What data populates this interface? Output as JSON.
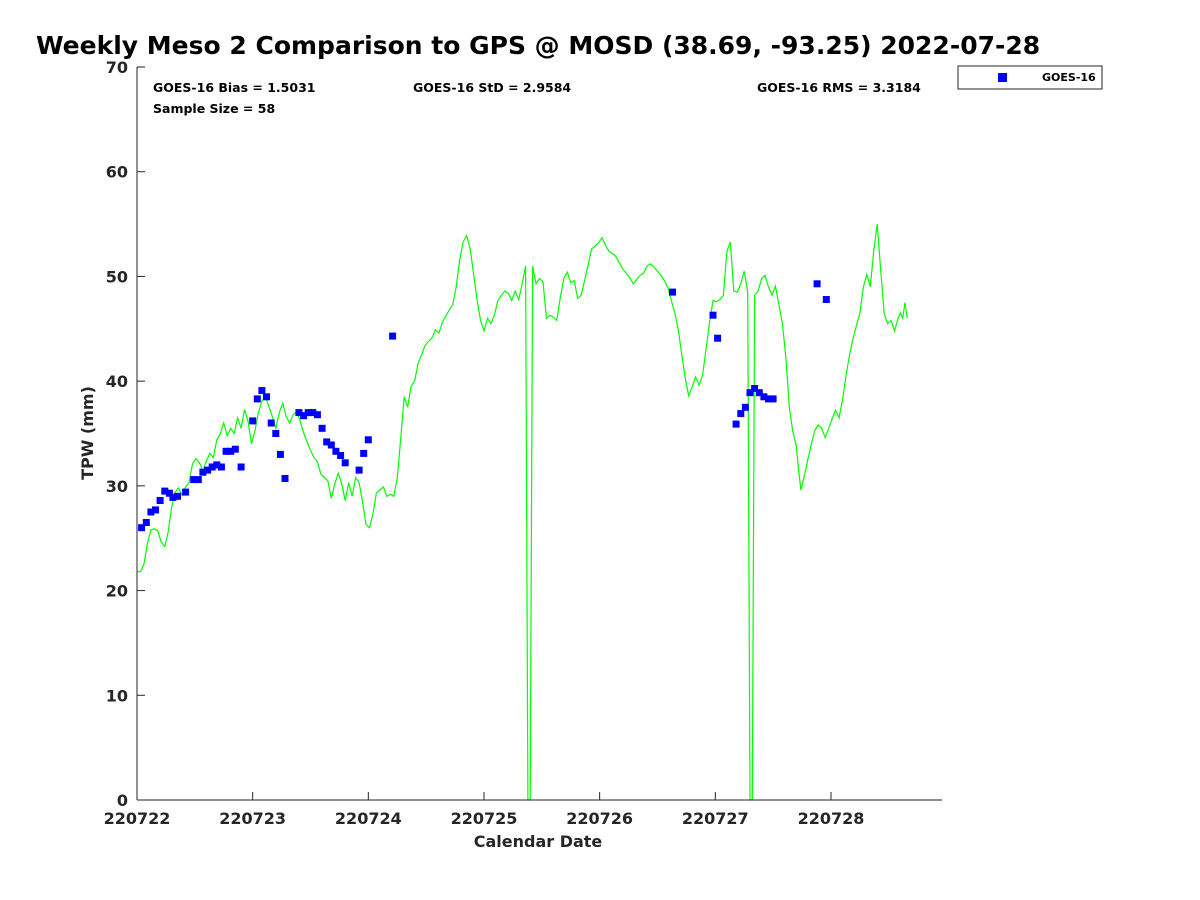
{
  "chart_data": {
    "type": "scatter",
    "title": "Weekly Meso 2 Comparison to GPS @ MOSD (38.69, -93.25) 2022-07-28",
    "xlabel": "Calendar Date",
    "ylabel": "TPW (mm)",
    "xlim": [
      0,
      6.96
    ],
    "ylim": [
      0,
      70
    ],
    "yticks": [
      0,
      10,
      20,
      30,
      40,
      50,
      60,
      70
    ],
    "xticks": [
      0,
      1,
      2,
      3,
      4,
      5,
      6
    ],
    "xtick_labels": [
      "220722",
      "220723",
      "220724",
      "220725",
      "220726",
      "220727",
      "220728"
    ],
    "stats": {
      "bias": "GOES-16 Bias = 1.5031",
      "std": "GOES-16 StD = 2.9584",
      "rms": "GOES-16 RMS = 3.3184",
      "sample": "Sample Size = 58"
    },
    "legend": {
      "label": "GOES-16",
      "color": "#0000ff",
      "position": "top-right-outside"
    },
    "series": [
      {
        "name": "GPS",
        "color": "#00ff00",
        "kind": "line",
        "points": [
          [
            0.0,
            21.8
          ],
          [
            0.03,
            21.8
          ],
          [
            0.06,
            22.5
          ],
          [
            0.09,
            24.5
          ],
          [
            0.12,
            25.8
          ],
          [
            0.15,
            25.9
          ],
          [
            0.18,
            25.7
          ],
          [
            0.21,
            24.6
          ],
          [
            0.24,
            24.2
          ],
          [
            0.27,
            25.6
          ],
          [
            0.3,
            28.0
          ],
          [
            0.33,
            29.4
          ],
          [
            0.36,
            29.8
          ],
          [
            0.39,
            29.1
          ],
          [
            0.42,
            29.9
          ],
          [
            0.45,
            30.3
          ],
          [
            0.48,
            32.1
          ],
          [
            0.51,
            32.6
          ],
          [
            0.54,
            32.2
          ],
          [
            0.57,
            31.4
          ],
          [
            0.6,
            32.4
          ],
          [
            0.63,
            33.1
          ],
          [
            0.66,
            32.7
          ],
          [
            0.69,
            34.4
          ],
          [
            0.72,
            35.0
          ],
          [
            0.75,
            36.0
          ],
          [
            0.78,
            34.8
          ],
          [
            0.81,
            35.5
          ],
          [
            0.84,
            35.0
          ],
          [
            0.87,
            36.5
          ],
          [
            0.9,
            35.5
          ],
          [
            0.93,
            37.3
          ],
          [
            0.96,
            36.2
          ],
          [
            0.99,
            34.0
          ],
          [
            1.02,
            35.3
          ],
          [
            1.05,
            37.0
          ],
          [
            1.08,
            38.1
          ],
          [
            1.11,
            38.5
          ],
          [
            1.14,
            37.6
          ],
          [
            1.17,
            36.6
          ],
          [
            1.2,
            35.5
          ],
          [
            1.23,
            37.0
          ],
          [
            1.26,
            37.9
          ],
          [
            1.29,
            36.6
          ],
          [
            1.32,
            36.0
          ],
          [
            1.35,
            36.8
          ],
          [
            1.38,
            37.1
          ],
          [
            1.41,
            36.2
          ],
          [
            1.44,
            35.1
          ],
          [
            1.47,
            34.2
          ],
          [
            1.5,
            33.4
          ],
          [
            1.53,
            32.7
          ],
          [
            1.56,
            32.3
          ],
          [
            1.59,
            31.1
          ],
          [
            1.62,
            30.8
          ],
          [
            1.65,
            30.5
          ],
          [
            1.68,
            28.8
          ],
          [
            1.71,
            30.2
          ],
          [
            1.74,
            31.2
          ],
          [
            1.77,
            30.2
          ],
          [
            1.8,
            28.6
          ],
          [
            1.83,
            30.3
          ],
          [
            1.86,
            29.0
          ],
          [
            1.89,
            30.8
          ],
          [
            1.92,
            30.3
          ],
          [
            1.95,
            28.5
          ],
          [
            1.98,
            26.3
          ],
          [
            2.01,
            26.0
          ],
          [
            2.04,
            27.3
          ],
          [
            2.07,
            29.3
          ],
          [
            2.1,
            29.6
          ],
          [
            2.13,
            29.9
          ],
          [
            2.16,
            29.0
          ],
          [
            2.19,
            29.2
          ],
          [
            2.22,
            29.0
          ],
          [
            2.25,
            30.7
          ],
          [
            2.28,
            34.5
          ],
          [
            2.31,
            38.5
          ],
          [
            2.34,
            37.5
          ],
          [
            2.37,
            39.5
          ],
          [
            2.4,
            40.0
          ],
          [
            2.43,
            41.7
          ],
          [
            2.46,
            42.5
          ],
          [
            2.49,
            43.4
          ],
          [
            2.52,
            43.8
          ],
          [
            2.55,
            44.1
          ],
          [
            2.58,
            44.9
          ],
          [
            2.61,
            44.6
          ],
          [
            2.64,
            45.6
          ],
          [
            2.67,
            46.2
          ],
          [
            2.7,
            46.8
          ],
          [
            2.73,
            47.3
          ],
          [
            2.76,
            49.0
          ],
          [
            2.79,
            51.6
          ],
          [
            2.82,
            53.3
          ],
          [
            2.85,
            53.9
          ],
          [
            2.88,
            52.7
          ],
          [
            2.91,
            50.2
          ],
          [
            2.94,
            47.8
          ],
          [
            2.97,
            45.8
          ],
          [
            3.0,
            44.8
          ],
          [
            3.03,
            46.0
          ],
          [
            3.06,
            45.5
          ],
          [
            3.09,
            46.3
          ],
          [
            3.12,
            47.7
          ],
          [
            3.15,
            48.2
          ],
          [
            3.18,
            48.6
          ],
          [
            3.21,
            48.4
          ],
          [
            3.24,
            47.7
          ],
          [
            3.27,
            48.6
          ],
          [
            3.3,
            47.8
          ],
          [
            3.33,
            49.3
          ],
          [
            3.36,
            51.0
          ],
          [
            3.38,
            0.0
          ],
          [
            3.4,
            0.0
          ],
          [
            3.42,
            51.0
          ],
          [
            3.45,
            49.3
          ],
          [
            3.48,
            49.8
          ],
          [
            3.51,
            49.5
          ],
          [
            3.54,
            46.0
          ],
          [
            3.57,
            46.3
          ],
          [
            3.6,
            46.1
          ],
          [
            3.63,
            45.8
          ],
          [
            3.66,
            48.0
          ],
          [
            3.69,
            49.8
          ],
          [
            3.72,
            50.4
          ],
          [
            3.75,
            49.4
          ],
          [
            3.78,
            49.6
          ],
          [
            3.81,
            47.9
          ],
          [
            3.84,
            48.2
          ],
          [
            3.87,
            49.6
          ],
          [
            3.9,
            51.1
          ],
          [
            3.93,
            52.6
          ],
          [
            3.96,
            52.9
          ],
          [
            3.99,
            53.2
          ],
          [
            4.02,
            53.7
          ],
          [
            4.05,
            53.0
          ],
          [
            4.08,
            52.4
          ],
          [
            4.11,
            52.2
          ],
          [
            4.14,
            51.9
          ],
          [
            4.17,
            51.3
          ],
          [
            4.2,
            50.7
          ],
          [
            4.23,
            50.3
          ],
          [
            4.26,
            49.9
          ],
          [
            4.29,
            49.3
          ],
          [
            4.32,
            49.7
          ],
          [
            4.35,
            50.1
          ],
          [
            4.38,
            50.3
          ],
          [
            4.41,
            51.0
          ],
          [
            4.44,
            51.2
          ],
          [
            4.47,
            50.9
          ],
          [
            4.5,
            50.5
          ],
          [
            4.53,
            50.1
          ],
          [
            4.56,
            49.6
          ],
          [
            4.59,
            48.9
          ],
          [
            4.62,
            47.7
          ],
          [
            4.65,
            46.5
          ],
          [
            4.68,
            44.9
          ],
          [
            4.71,
            42.5
          ],
          [
            4.74,
            40.3
          ],
          [
            4.77,
            38.6
          ],
          [
            4.8,
            39.5
          ],
          [
            4.83,
            40.4
          ],
          [
            4.86,
            39.6
          ],
          [
            4.89,
            40.6
          ],
          [
            4.92,
            43.1
          ],
          [
            4.95,
            45.6
          ],
          [
            4.98,
            47.7
          ],
          [
            5.01,
            47.6
          ],
          [
            5.04,
            47.8
          ],
          [
            5.07,
            48.2
          ],
          [
            5.1,
            52.4
          ],
          [
            5.13,
            53.3
          ],
          [
            5.16,
            48.6
          ],
          [
            5.19,
            48.5
          ],
          [
            5.22,
            49.3
          ],
          [
            5.25,
            50.5
          ],
          [
            5.28,
            48.5
          ],
          [
            5.3,
            0.0
          ],
          [
            5.32,
            0.0
          ],
          [
            5.34,
            48.2
          ],
          [
            5.37,
            48.6
          ],
          [
            5.4,
            49.8
          ],
          [
            5.43,
            50.1
          ],
          [
            5.46,
            49.0
          ],
          [
            5.49,
            48.2
          ],
          [
            5.52,
            49.1
          ],
          [
            5.55,
            47.3
          ],
          [
            5.58,
            45.5
          ],
          [
            5.61,
            42.2
          ],
          [
            5.64,
            37.5
          ],
          [
            5.67,
            35.2
          ],
          [
            5.7,
            33.8
          ],
          [
            5.72,
            31.5
          ],
          [
            5.74,
            29.6
          ],
          [
            5.77,
            31.0
          ],
          [
            5.8,
            32.5
          ],
          [
            5.83,
            34.0
          ],
          [
            5.86,
            35.3
          ],
          [
            5.89,
            35.8
          ],
          [
            5.92,
            35.5
          ],
          [
            5.95,
            34.6
          ],
          [
            5.98,
            35.5
          ],
          [
            6.01,
            36.4
          ],
          [
            6.04,
            37.2
          ],
          [
            6.07,
            36.5
          ],
          [
            6.1,
            38.2
          ],
          [
            6.13,
            40.5
          ],
          [
            6.16,
            42.5
          ],
          [
            6.19,
            44.0
          ],
          [
            6.22,
            45.3
          ],
          [
            6.25,
            46.5
          ],
          [
            6.28,
            49.0
          ],
          [
            6.31,
            50.2
          ],
          [
            6.34,
            49.0
          ],
          [
            6.37,
            52.5
          ],
          [
            6.4,
            55.0
          ],
          [
            6.43,
            50.6
          ],
          [
            6.46,
            46.4
          ],
          [
            6.49,
            45.5
          ],
          [
            6.52,
            45.8
          ],
          [
            6.55,
            44.8
          ],
          [
            6.58,
            46.0
          ],
          [
            6.6,
            46.5
          ],
          [
            6.62,
            46.0
          ],
          [
            6.64,
            47.5
          ],
          [
            6.66,
            46.0
          ]
        ]
      },
      {
        "name": "GOES-16",
        "color": "#0000ff",
        "kind": "scatter",
        "points": [
          [
            0.04,
            26.0
          ],
          [
            0.08,
            26.5
          ],
          [
            0.12,
            27.5
          ],
          [
            0.16,
            27.7
          ],
          [
            0.2,
            28.6
          ],
          [
            0.24,
            29.5
          ],
          [
            0.28,
            29.3
          ],
          [
            0.31,
            28.9
          ],
          [
            0.35,
            29.0
          ],
          [
            0.42,
            29.4
          ],
          [
            0.49,
            30.6
          ],
          [
            0.53,
            30.6
          ],
          [
            0.57,
            31.3
          ],
          [
            0.61,
            31.5
          ],
          [
            0.65,
            31.8
          ],
          [
            0.69,
            32.0
          ],
          [
            0.73,
            31.8
          ],
          [
            0.77,
            33.3
          ],
          [
            0.81,
            33.3
          ],
          [
            0.85,
            33.5
          ],
          [
            0.9,
            31.8
          ],
          [
            1.0,
            36.2
          ],
          [
            1.04,
            38.3
          ],
          [
            1.08,
            39.1
          ],
          [
            1.12,
            38.5
          ],
          [
            1.16,
            36.0
          ],
          [
            1.2,
            35.0
          ],
          [
            1.24,
            33.0
          ],
          [
            1.28,
            30.7
          ],
          [
            1.4,
            37.0
          ],
          [
            1.44,
            36.7
          ],
          [
            1.48,
            37.0
          ],
          [
            1.52,
            37.0
          ],
          [
            1.56,
            36.8
          ],
          [
            1.6,
            35.5
          ],
          [
            1.64,
            34.2
          ],
          [
            1.68,
            33.9
          ],
          [
            1.72,
            33.3
          ],
          [
            1.76,
            32.9
          ],
          [
            1.8,
            32.2
          ],
          [
            1.92,
            31.5
          ],
          [
            1.96,
            33.1
          ],
          [
            2.0,
            34.4
          ],
          [
            2.21,
            44.3
          ],
          [
            4.63,
            48.5
          ],
          [
            4.98,
            46.3
          ],
          [
            5.02,
            44.1
          ],
          [
            5.18,
            35.9
          ],
          [
            5.22,
            36.9
          ],
          [
            5.26,
            37.5
          ],
          [
            5.3,
            38.9
          ],
          [
            5.34,
            39.3
          ],
          [
            5.38,
            38.9
          ],
          [
            5.42,
            38.5
          ],
          [
            5.46,
            38.3
          ],
          [
            5.5,
            38.3
          ],
          [
            5.88,
            49.3
          ],
          [
            5.96,
            47.8
          ]
        ]
      }
    ]
  }
}
